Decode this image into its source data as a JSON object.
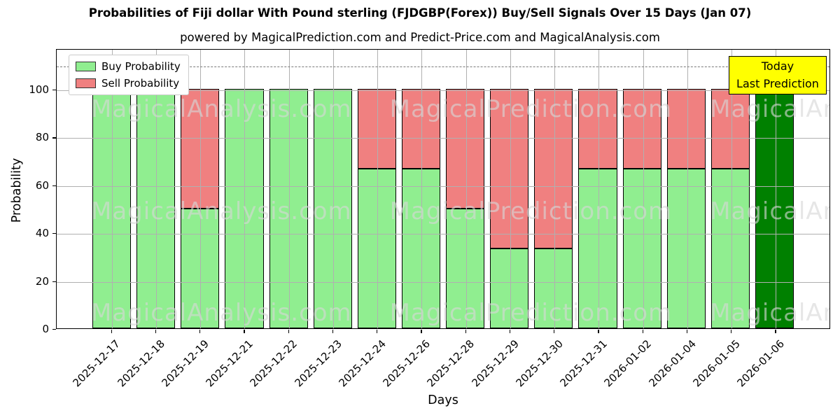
{
  "page": {
    "title": "Probabilities of Fiji dollar With Pound sterling (FJDGBP(Forex)) Buy/Sell Signals Over 15 Days (Jan 07)",
    "subtitle": "powered by MagicalPrediction.com and Predict-Price.com and MagicalAnalysis.com"
  },
  "axes": {
    "ylabel": "Probability",
    "xlabel": "Days"
  },
  "legend": {
    "items": [
      {
        "label": "Buy Probability",
        "color": "#90ee90"
      },
      {
        "label": "Sell Probability",
        "color": "#f08080"
      }
    ]
  },
  "annotation": {
    "line1": "Today",
    "line2": "Last Prediction",
    "bg_color": "#ffff00"
  },
  "watermarks": {
    "left_text": "MagicalAnalysis.com",
    "right_text": "MagicalPrediction.com"
  },
  "chart_data": {
    "type": "bar",
    "stacked": true,
    "title": "Probabilities of Fiji dollar With Pound sterling (FJDGBP(Forex)) Buy/Sell Signals Over 15 Days (Jan 07)",
    "xlabel": "Days",
    "ylabel": "Probability",
    "ylim": [
      0,
      117
    ],
    "yticks": [
      0,
      20,
      40,
      60,
      80,
      100
    ],
    "threshold_dashed_line_y": 110,
    "grid": true,
    "legend_position": "upper-left",
    "categories": [
      "2025-12-17",
      "2025-12-18",
      "2025-12-19",
      "2025-12-21",
      "2025-12-22",
      "2025-12-23",
      "2025-12-24",
      "2025-12-26",
      "2025-12-28",
      "2025-12-29",
      "2025-12-30",
      "2025-12-31",
      "2026-01-02",
      "2026-01-04",
      "2026-01-05",
      "2026-01-06"
    ],
    "series": [
      {
        "name": "Buy Probability",
        "color": "#90ee90",
        "values": [
          100,
          100,
          50,
          100,
          100,
          100,
          66.7,
          66.7,
          50,
          33.3,
          33.3,
          66.7,
          66.7,
          66.7,
          66.7,
          100
        ]
      },
      {
        "name": "Sell Probability",
        "color": "#f08080",
        "values": [
          0,
          0,
          50,
          0,
          0,
          0,
          33.3,
          33.3,
          50,
          66.7,
          66.7,
          33.3,
          33.3,
          33.3,
          33.3,
          0
        ]
      }
    ],
    "highlight_bar": {
      "index": 15,
      "category": "2026-01-06",
      "color": "#008000",
      "note": "Today Last Prediction"
    },
    "colors": {
      "buy": "#90ee90",
      "sell": "#f08080",
      "today": "#008000",
      "grid": "#b0b0b0",
      "bar_edge": "#000000"
    }
  }
}
